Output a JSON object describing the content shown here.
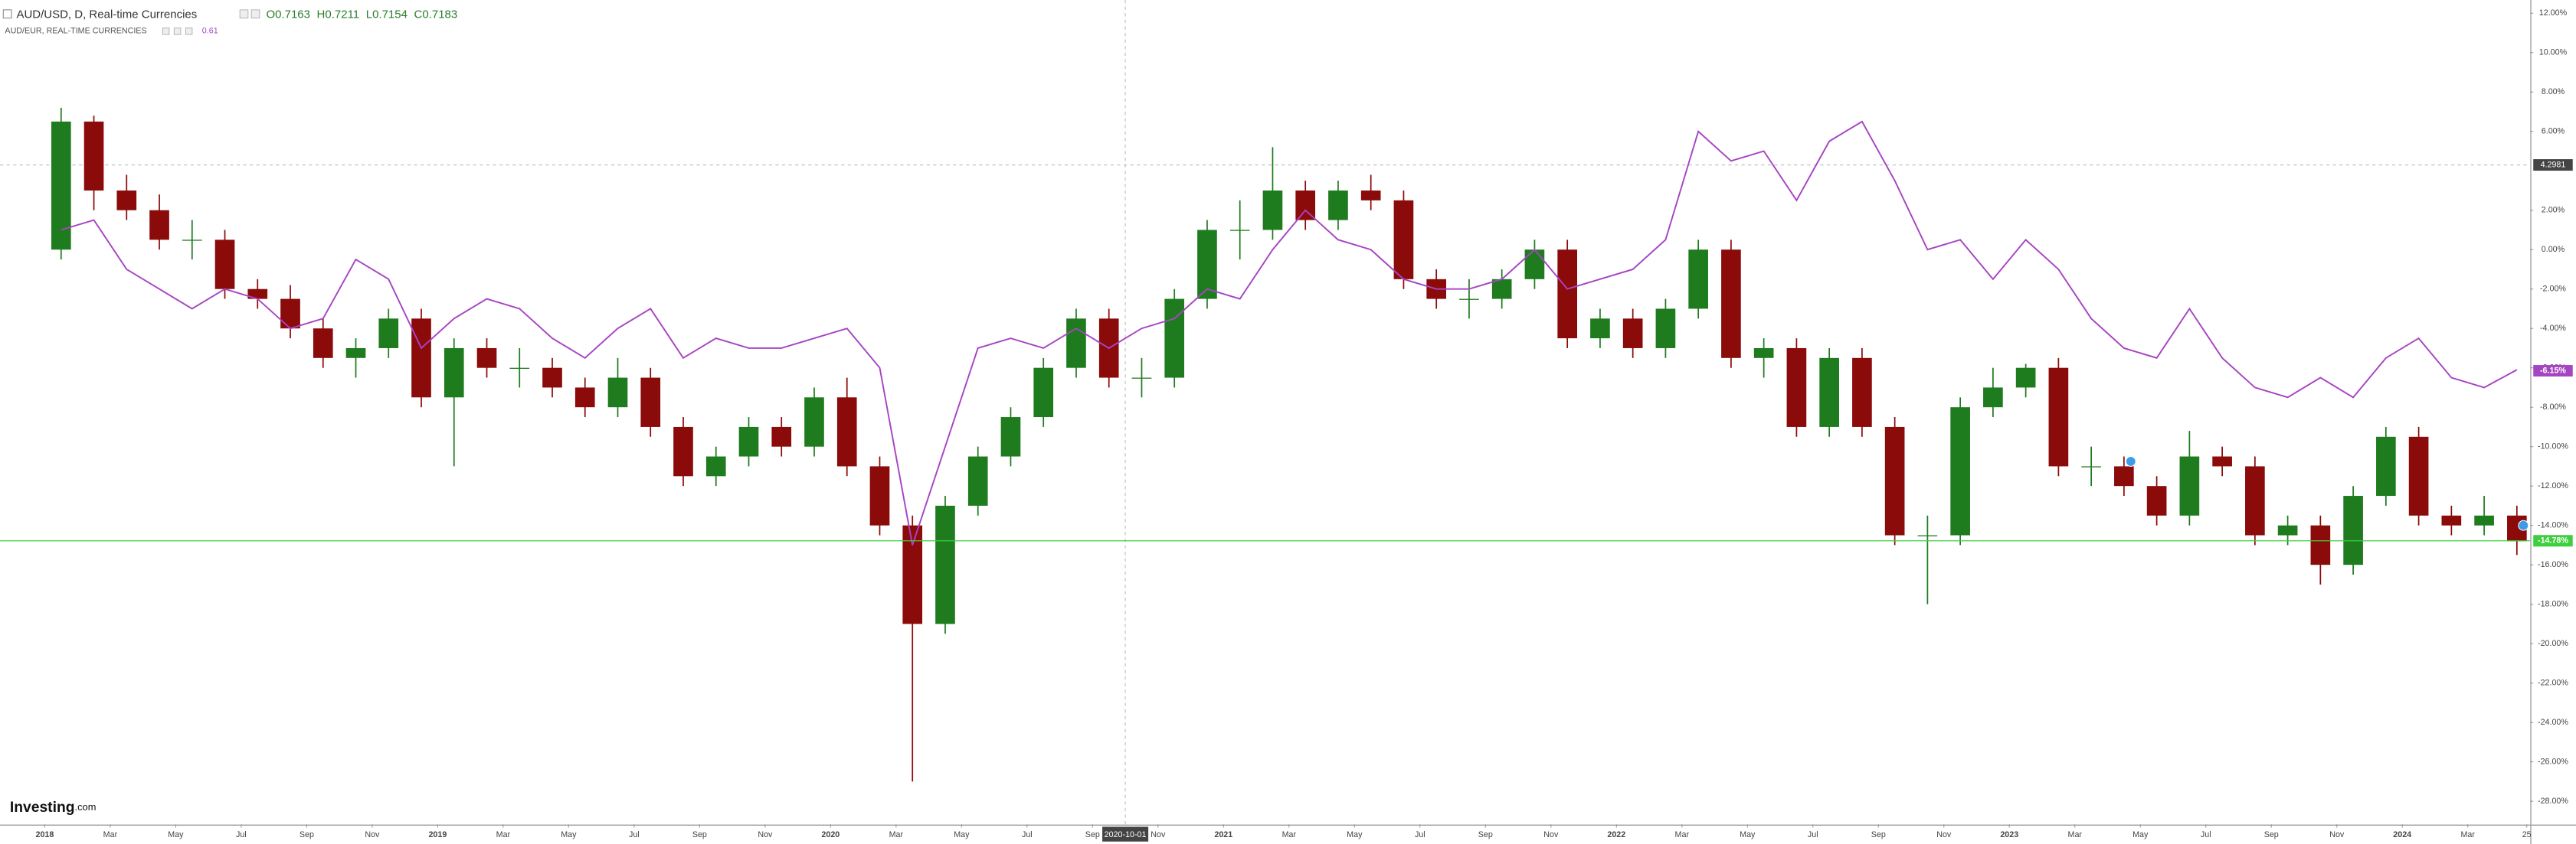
{
  "chart_data": {
    "type": "candlestick",
    "logo": {
      "name": "Investing",
      "suffix": ".com"
    },
    "x": [
      "2018-01",
      "2018-02",
      "2018-03",
      "2018-04",
      "2018-05",
      "2018-06",
      "2018-07",
      "2018-08",
      "2018-09",
      "2018-10",
      "2018-11",
      "2018-12",
      "2019-01",
      "2019-02",
      "2019-03",
      "2019-04",
      "2019-05",
      "2019-06",
      "2019-07",
      "2019-08",
      "2019-09",
      "2019-10",
      "2019-11",
      "2019-12",
      "2020-01",
      "2020-02",
      "2020-03",
      "2020-04",
      "2020-05",
      "2020-06",
      "2020-07",
      "2020-08",
      "2020-09",
      "2020-10",
      "2020-11",
      "2020-12",
      "2021-01",
      "2021-02",
      "2021-03",
      "2021-04",
      "2021-05",
      "2021-06",
      "2021-07",
      "2021-08",
      "2021-09",
      "2021-10",
      "2021-11",
      "2021-12",
      "2022-01",
      "2022-02",
      "2022-03",
      "2022-04",
      "2022-05",
      "2022-06",
      "2022-07",
      "2022-08",
      "2022-09",
      "2022-10",
      "2022-11",
      "2022-12",
      "2023-01",
      "2023-02",
      "2023-03",
      "2023-04",
      "2023-05",
      "2023-06",
      "2023-07",
      "2023-08",
      "2023-09",
      "2023-10",
      "2023-11",
      "2023-12",
      "2024-01",
      "2024-02",
      "2024-03",
      "2024-04"
    ],
    "xlim": [
      "2017-11-20",
      "2024-04-28"
    ],
    "xticks": [
      {
        "value": "2018-01",
        "label": "2018"
      },
      {
        "value": "2018-03",
        "label": "Mar"
      },
      {
        "value": "2018-05",
        "label": "May"
      },
      {
        "value": "2018-07",
        "label": "Jul"
      },
      {
        "value": "2018-09",
        "label": "Sep"
      },
      {
        "value": "2018-11",
        "label": "Nov"
      },
      {
        "value": "2019-01",
        "label": "2019"
      },
      {
        "value": "2019-03",
        "label": "Mar"
      },
      {
        "value": "2019-05",
        "label": "May"
      },
      {
        "value": "2019-07",
        "label": "Jul"
      },
      {
        "value": "2019-09",
        "label": "Sep"
      },
      {
        "value": "2019-11",
        "label": "Nov"
      },
      {
        "value": "2020-01",
        "label": "2020"
      },
      {
        "value": "2020-03",
        "label": "Mar"
      },
      {
        "value": "2020-05",
        "label": "May"
      },
      {
        "value": "2020-07",
        "label": "Jul"
      },
      {
        "value": "2020-09",
        "label": "Sep"
      },
      {
        "value": "2020-11",
        "label": "Nov"
      },
      {
        "value": "2021-01",
        "label": "2021"
      },
      {
        "value": "2021-03",
        "label": "Mar"
      },
      {
        "value": "2021-05",
        "label": "May"
      },
      {
        "value": "2021-07",
        "label": "Jul"
      },
      {
        "value": "2021-09",
        "label": "Sep"
      },
      {
        "value": "2021-11",
        "label": "Nov"
      },
      {
        "value": "2022-01",
        "label": "2022"
      },
      {
        "value": "2022-03",
        "label": "Mar"
      },
      {
        "value": "2022-05",
        "label": "May"
      },
      {
        "value": "2022-07",
        "label": "Jul"
      },
      {
        "value": "2022-09",
        "label": "Sep"
      },
      {
        "value": "2022-11",
        "label": "Nov"
      },
      {
        "value": "2023-01",
        "label": "2023"
      },
      {
        "value": "2023-03",
        "label": "Mar"
      },
      {
        "value": "2023-05",
        "label": "May"
      },
      {
        "value": "2023-07",
        "label": "Jul"
      },
      {
        "value": "2023-09",
        "label": "Sep"
      },
      {
        "value": "2023-11",
        "label": "Nov"
      },
      {
        "value": "2024-01",
        "label": "2024"
      },
      {
        "value": "2024-03",
        "label": "Mar"
      },
      {
        "value": "2024-04-25",
        "label": "25"
      }
    ],
    "ylim": [
      -29.17,
      12.67
    ],
    "yticks": [
      {
        "value": 12,
        "label": "12.00%"
      },
      {
        "value": 10,
        "label": "10.00%"
      },
      {
        "value": 8,
        "label": "8.00%"
      },
      {
        "value": 6,
        "label": "6.00%"
      },
      {
        "value": 2,
        "label": "2.00%"
      },
      {
        "value": 0,
        "label": "0.00%"
      },
      {
        "value": -2,
        "label": "-2.00%"
      },
      {
        "value": -4,
        "label": "-4.00%"
      },
      {
        "value": -6,
        "label": "-6.00%"
      },
      {
        "value": -8,
        "label": "-8.00%"
      },
      {
        "value": -10,
        "label": "-10.00%"
      },
      {
        "value": -12,
        "label": "-12.00%"
      },
      {
        "value": -14,
        "label": "-14.00%"
      },
      {
        "value": -16,
        "label": "-16.00%"
      },
      {
        "value": -18,
        "label": "-18.00%"
      },
      {
        "value": -20,
        "label": "-20.00%"
      },
      {
        "value": -22,
        "label": "-22.00%"
      },
      {
        "value": -24,
        "label": "-24.00%"
      },
      {
        "value": -26,
        "label": "-26.00%"
      },
      {
        "value": -28,
        "label": "-28.00%"
      }
    ],
    "crosshair": {
      "x": "2020-10-01",
      "y": {
        "value": 4.2981,
        "label": "4.2981"
      }
    },
    "series": [
      {
        "type": "candlestick",
        "name": "AUD/USD, D, Real-time Currencies",
        "ohlc_labels": [
          "O0.7163",
          "H0.7211",
          "L0.7154",
          "C0.7183"
        ],
        "up_color": "#1e7b1e",
        "down_color": "#8b0a0a",
        "open": [
          0,
          6.5,
          3,
          2,
          0.5,
          0.5,
          -2,
          -2.5,
          -4,
          -5.5,
          -5,
          -3.5,
          -7.5,
          -5,
          -6,
          -6,
          -7,
          -8,
          -6.5,
          -9,
          -11.5,
          -10.5,
          -9,
          -10,
          -7.5,
          -11,
          -14,
          -19,
          -13,
          -10.5,
          -8.5,
          -6,
          -3.5,
          -6.5,
          -6.5,
          -2.5,
          1,
          1,
          3,
          1.5,
          3,
          2.5,
          -1.5,
          -2.5,
          -2.5,
          -1.5,
          0,
          -4.5,
          -3.5,
          -5,
          -3,
          0,
          -5.5,
          -5,
          -9,
          -5.5,
          -9,
          -14.5,
          -14.5,
          -8,
          -7,
          -6,
          -11,
          -11,
          -12,
          -13.5,
          -10.5,
          -11,
          -14.5,
          -14,
          -16,
          -12.5,
          -9.5,
          -13.5,
          -14,
          -13.5
        ],
        "high": [
          7.2,
          6.8,
          3.8,
          2.8,
          1.5,
          1,
          -1.5,
          -1.8,
          -3.5,
          -4.5,
          -3,
          -3,
          -4.5,
          -4.5,
          -5,
          -5.5,
          -6.5,
          -5.5,
          -6,
          -8.5,
          -10,
          -8.5,
          -8.5,
          -7,
          -6.5,
          -10.5,
          -13.5,
          -12.5,
          -10,
          -8,
          -5.5,
          -3,
          -3,
          -5.5,
          -2,
          1.5,
          2.5,
          5.2,
          3.5,
          3.5,
          3.8,
          3,
          -1,
          -1.5,
          -1,
          0.5,
          0.5,
          -3,
          -3,
          -2.5,
          0.5,
          0.5,
          -4.5,
          -4.5,
          -5,
          -5,
          -8.5,
          -13.5,
          -7.5,
          -6,
          -5.8,
          -5.5,
          -10,
          -10.5,
          -11.5,
          -9.2,
          -10,
          -10.5,
          -13.5,
          -13.5,
          -12,
          -9,
          -9,
          -13,
          -12.5,
          -13
        ],
        "low": [
          -0.5,
          2,
          1.5,
          0,
          -0.5,
          -2.5,
          -3,
          -4.5,
          -6,
          -6.5,
          -5.5,
          -8,
          -11,
          -6.5,
          -7,
          -7.5,
          -8.5,
          -8.5,
          -9.5,
          -12,
          -12,
          -11,
          -10.5,
          -10.5,
          -11.5,
          -14.5,
          -27,
          -19.5,
          -13.5,
          -11,
          -9,
          -6.5,
          -7,
          -7.5,
          -7,
          -3,
          -0.5,
          0.5,
          1,
          1,
          2,
          -2,
          -3,
          -3.5,
          -3,
          -2,
          -5,
          -5,
          -5.5,
          -5.5,
          -3.5,
          -6,
          -6.5,
          -9.5,
          -9.5,
          -9.5,
          -15,
          -18,
          -15,
          -8.5,
          -7.5,
          -11.5,
          -12,
          -12.5,
          -14,
          -14,
          -11.5,
          -15,
          -15,
          -17,
          -16.5,
          -13,
          -14,
          -14.5,
          -14.5,
          -15.5
        ],
        "close": [
          6.5,
          3,
          2,
          0.5,
          0.5,
          -2,
          -2.5,
          -4,
          -5.5,
          -5,
          -3.5,
          -7.5,
          -5,
          -6,
          -6,
          -7,
          -8,
          -6.5,
          -9,
          -11.5,
          -10.5,
          -9,
          -10,
          -7.5,
          -11,
          -14,
          -19,
          -13,
          -10.5,
          -8.5,
          -6,
          -3.5,
          -6.5,
          -6.5,
          -2.5,
          1,
          1,
          3,
          1.5,
          3,
          2.5,
          -1.5,
          -2.5,
          -2.5,
          -1.5,
          0,
          -4.5,
          -3.5,
          -5,
          -3,
          0,
          -5.5,
          -5,
          -9,
          -5.5,
          -9,
          -14.5,
          -14.5,
          -8,
          -7,
          -6,
          -11,
          -11,
          -12,
          -13.5,
          -10.5,
          -11,
          -14.5,
          -14,
          -16,
          -12.5,
          -9.5,
          -13.5,
          -14,
          -13.5,
          -14.8
        ],
        "last_marker": {
          "value": -14.78,
          "label": "-14.78%"
        },
        "marker_color": "#3ecf3e"
      },
      {
        "type": "line",
        "name": "AUD/EUR, REAL-TIME CURRENCIES",
        "value_text": "0.61",
        "color": "#a645c2",
        "values": [
          1,
          1.5,
          -1,
          -2,
          -3,
          -2,
          -2.5,
          -4,
          -3.5,
          -0.5,
          -1.5,
          -5,
          -3.5,
          -2.5,
          -3,
          -4.5,
          -5.5,
          -4,
          -3,
          -5.5,
          -4.5,
          -5,
          -5,
          -4.5,
          -4,
          -6,
          -15,
          -10,
          -5,
          -4.5,
          -5,
          -4,
          -5,
          -4,
          -3.5,
          -2,
          -2.5,
          0,
          2,
          0.5,
          0,
          -1.5,
          -2,
          -2,
          -1.5,
          0,
          -2,
          -1.5,
          -1,
          0.5,
          6,
          4.5,
          5,
          2.5,
          5.5,
          6.5,
          3.5,
          0,
          0.5,
          -1.5,
          0.5,
          -1,
          -3.5,
          -5,
          -5.5,
          -3,
          -5.5,
          -7,
          -7.5,
          -6.5,
          -7.5,
          -5.5,
          -4.5,
          -6.5,
          -7,
          -6.1
        ],
        "last_marker": {
          "value": -6.15,
          "label": "-6.15%"
        }
      }
    ]
  }
}
